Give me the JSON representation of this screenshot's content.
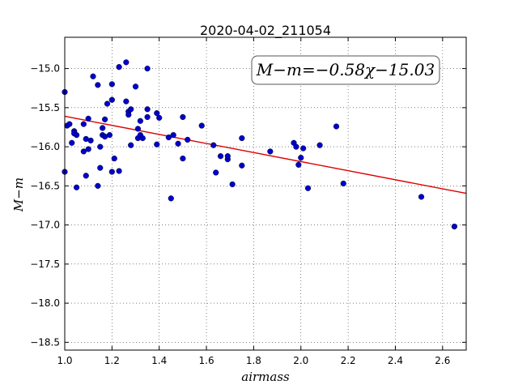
{
  "chart_data": {
    "type": "scatter",
    "title": "2020-04-02_211054",
    "xlabel": "airmass",
    "ylabel": "M−m",
    "annotation": "M−m=−0.58χ−15.03",
    "xlim": [
      1.0,
      2.7
    ],
    "ylim": [
      -18.6,
      -14.6
    ],
    "xticks": [
      1.0,
      1.2,
      1.4,
      1.6,
      1.8,
      2.0,
      2.2,
      2.4,
      2.6
    ],
    "xtick_labels": [
      "1.0",
      "1.2",
      "1.4",
      "1.6",
      "1.8",
      "2.0",
      "2.2",
      "2.4",
      "2.6"
    ],
    "yticks": [
      -15.0,
      -15.5,
      -16.0,
      -16.5,
      -17.0,
      -17.5,
      -18.0,
      -18.5
    ],
    "ytick_labels": [
      "−15.0",
      "−15.5",
      "−16.0",
      "−16.5",
      "−17.0",
      "−17.5",
      "−18.0",
      "−18.5"
    ],
    "grid": true,
    "colors": {
      "points": "#0000cc",
      "fit_line": "#dd0000"
    },
    "fit": {
      "slope": -0.58,
      "intercept": -15.03
    },
    "points": [
      [
        1.0,
        -15.3
      ],
      [
        1.0,
        -16.32
      ],
      [
        1.01,
        -15.73
      ],
      [
        1.02,
        -15.71
      ],
      [
        1.03,
        -15.95
      ],
      [
        1.04,
        -15.8
      ],
      [
        1.04,
        -15.83
      ],
      [
        1.05,
        -15.85
      ],
      [
        1.05,
        -16.52
      ],
      [
        1.08,
        -16.06
      ],
      [
        1.08,
        -15.71
      ],
      [
        1.09,
        -16.37
      ],
      [
        1.09,
        -15.9
      ],
      [
        1.1,
        -15.64
      ],
      [
        1.1,
        -16.03
      ],
      [
        1.11,
        -15.92
      ],
      [
        1.12,
        -15.1
      ],
      [
        1.14,
        -15.21
      ],
      [
        1.14,
        -16.5
      ],
      [
        1.15,
        -16.0
      ],
      [
        1.15,
        -16.27
      ],
      [
        1.16,
        -15.76
      ],
      [
        1.16,
        -15.85
      ],
      [
        1.17,
        -15.87
      ],
      [
        1.17,
        -15.65
      ],
      [
        1.18,
        -15.45
      ],
      [
        1.19,
        -15.85
      ],
      [
        1.2,
        -15.2
      ],
      [
        1.2,
        -15.4
      ],
      [
        1.2,
        -16.32
      ],
      [
        1.21,
        -16.15
      ],
      [
        1.23,
        -14.98
      ],
      [
        1.23,
        -16.31
      ],
      [
        1.26,
        -15.42
      ],
      [
        1.26,
        -14.92
      ],
      [
        1.27,
        -15.55
      ],
      [
        1.27,
        -15.59
      ],
      [
        1.28,
        -15.52
      ],
      [
        1.28,
        -15.98
      ],
      [
        1.3,
        -15.23
      ],
      [
        1.31,
        -15.89
      ],
      [
        1.31,
        -15.77
      ],
      [
        1.32,
        -15.67
      ],
      [
        1.32,
        -15.85
      ],
      [
        1.33,
        -15.89
      ],
      [
        1.35,
        -15.62
      ],
      [
        1.35,
        -15.0
      ],
      [
        1.35,
        -15.52
      ],
      [
        1.39,
        -15.57
      ],
      [
        1.39,
        -15.97
      ],
      [
        1.4,
        -15.63
      ],
      [
        1.44,
        -15.88
      ],
      [
        1.45,
        -16.66
      ],
      [
        1.46,
        -15.85
      ],
      [
        1.48,
        -15.96
      ],
      [
        1.5,
        -15.62
      ],
      [
        1.5,
        -16.15
      ],
      [
        1.52,
        -15.91
      ],
      [
        1.58,
        -15.73
      ],
      [
        1.63,
        -15.98
      ],
      [
        1.64,
        -16.33
      ],
      [
        1.66,
        -16.12
      ],
      [
        1.69,
        -16.16
      ],
      [
        1.69,
        -16.12
      ],
      [
        1.71,
        -16.48
      ],
      [
        1.75,
        -16.24
      ],
      [
        1.75,
        -15.89
      ],
      [
        1.87,
        -16.06
      ],
      [
        1.97,
        -15.95
      ],
      [
        1.98,
        -16.0
      ],
      [
        1.99,
        -16.23
      ],
      [
        2.0,
        -16.14
      ],
      [
        2.01,
        -16.02
      ],
      [
        2.03,
        -16.53
      ],
      [
        2.08,
        -15.98
      ],
      [
        2.15,
        -15.74
      ],
      [
        2.18,
        -16.47
      ],
      [
        2.51,
        -16.64
      ],
      [
        2.65,
        -17.02
      ]
    ]
  }
}
